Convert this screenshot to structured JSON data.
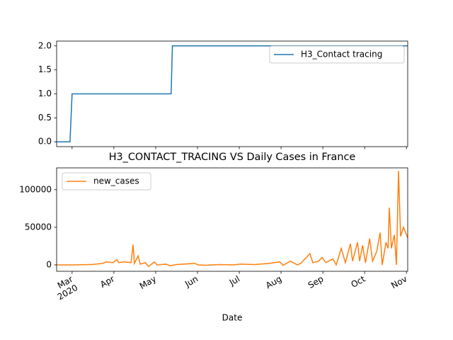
{
  "chart_data": [
    {
      "type": "line",
      "x": [
        -0.37,
        -0.05,
        0.0,
        2.37,
        2.4,
        8.03
      ],
      "series": [
        {
          "name": "H3_Contact tracing",
          "color": "#1f77b4",
          "values": [
            0,
            0,
            1,
            1,
            2,
            2
          ]
        }
      ],
      "xlim": [
        -0.37,
        8.03
      ],
      "ylim": [
        -0.1,
        2.1
      ],
      "yticks": [
        {
          "value": 0,
          "label": "0.0"
        },
        {
          "value": 0.5,
          "label": "0.5"
        },
        {
          "value": 1,
          "label": "1.0"
        },
        {
          "value": 1.5,
          "label": "1.5"
        },
        {
          "value": 2,
          "label": "2.0"
        }
      ],
      "legend": "upper right"
    },
    {
      "type": "line",
      "title": "H3_CONTACT_TRACING VS Daily Cases in France",
      "xlabel": "Date",
      "x": [
        -0.37,
        -0.03,
        0.47,
        0.73,
        0.81,
        0.98,
        1.07,
        1.12,
        1.24,
        1.41,
        1.46,
        1.49,
        1.58,
        1.63,
        1.75,
        1.83,
        1.97,
        2.03,
        2.25,
        2.34,
        2.51,
        2.93,
        3.02,
        3.19,
        3.53,
        3.86,
        4.03,
        4.37,
        4.71,
        4.97,
        5.05,
        5.22,
        5.39,
        5.47,
        5.69,
        5.76,
        5.9,
        5.98,
        6.07,
        6.24,
        6.32,
        6.44,
        6.54,
        6.66,
        6.71,
        6.83,
        6.88,
        6.95,
        7.02,
        7.12,
        7.19,
        7.29,
        7.37,
        7.42,
        7.51,
        7.56,
        7.59,
        7.64,
        7.71,
        7.76,
        7.81,
        7.86,
        7.93,
        8.03
      ],
      "series": [
        {
          "name": "new_cases",
          "color": "#ff7f0e",
          "values": [
            0,
            0,
            500,
            2000,
            4000,
            3000,
            7000,
            3000,
            4000,
            3000,
            27000,
            2000,
            12000,
            1000,
            3000,
            -2000,
            4000,
            0,
            1000,
            -1000,
            500,
            2000,
            0,
            -500,
            500,
            0,
            1000,
            500,
            2000,
            4000,
            -500,
            5000,
            0,
            2000,
            15000,
            3000,
            5000,
            10000,
            3000,
            8000,
            0,
            22000,
            3000,
            28000,
            5000,
            30000,
            5000,
            26000,
            3000,
            35000,
            5000,
            18000,
            43000,
            0,
            30000,
            22000,
            76000,
            22000,
            40000,
            0,
            125000,
            38000,
            50000,
            36000
          ]
        }
      ],
      "xlim": [
        -0.37,
        8.03
      ],
      "xticks": [
        {
          "value": 0,
          "label": "Mar\n2020"
        },
        {
          "value": 1,
          "label": "Apr"
        },
        {
          "value": 2,
          "label": "May"
        },
        {
          "value": 3,
          "label": "Jun"
        },
        {
          "value": 4,
          "label": "Jul"
        },
        {
          "value": 5,
          "label": "Aug"
        },
        {
          "value": 6,
          "label": "Sep"
        },
        {
          "value": 7,
          "label": "Oct"
        },
        {
          "value": 8,
          "label": "Nov"
        }
      ],
      "ylim": [
        -8500,
        129000
      ],
      "yticks": [
        0,
        50000,
        100000
      ],
      "legend": "upper left"
    }
  ]
}
